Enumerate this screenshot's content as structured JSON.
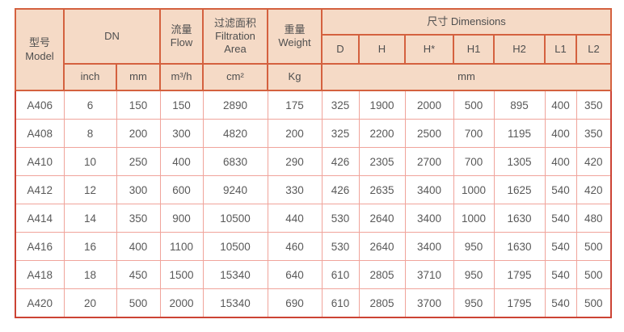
{
  "colors": {
    "header_bg": "#f5dac6",
    "outer_border": "#cc4334",
    "header_grid": "#d4613f",
    "data_grid": "#f0a49b",
    "text": "#595959"
  },
  "header": {
    "model": "型号\nModel",
    "dn": "DN",
    "flow": "流量\nFlow",
    "filtration_area": "过滤面积\nFiltration\nArea",
    "weight": "重量\nWeight",
    "dimensions": "尺寸 Dimensions",
    "dim_cols": [
      "D",
      "H",
      "H*",
      "H1",
      "H2",
      "L1",
      "L2"
    ],
    "units": {
      "inch": "inch",
      "mm": "mm",
      "flow": "m³/h",
      "area": "cm²",
      "weight": "Kg",
      "dims": "mm"
    }
  },
  "rows": [
    {
      "model": "A406",
      "inch": "6",
      "mm": "150",
      "flow": "150",
      "area": "2890",
      "weight": "175",
      "dims": [
        "325",
        "1900",
        "2000",
        "500",
        "895",
        "400",
        "350"
      ]
    },
    {
      "model": "A408",
      "inch": "8",
      "mm": "200",
      "flow": "300",
      "area": "4820",
      "weight": "200",
      "dims": [
        "325",
        "2200",
        "2500",
        "700",
        "1195",
        "400",
        "350"
      ]
    },
    {
      "model": "A410",
      "inch": "10",
      "mm": "250",
      "flow": "400",
      "area": "6830",
      "weight": "290",
      "dims": [
        "426",
        "2305",
        "2700",
        "700",
        "1305",
        "400",
        "420"
      ]
    },
    {
      "model": "A412",
      "inch": "12",
      "mm": "300",
      "flow": "600",
      "area": "9240",
      "weight": "330",
      "dims": [
        "426",
        "2635",
        "3400",
        "1000",
        "1625",
        "540",
        "420"
      ]
    },
    {
      "model": "A414",
      "inch": "14",
      "mm": "350",
      "flow": "900",
      "area": "10500",
      "weight": "440",
      "dims": [
        "530",
        "2640",
        "3400",
        "1000",
        "1630",
        "540",
        "480"
      ]
    },
    {
      "model": "A416",
      "inch": "16",
      "mm": "400",
      "flow": "1100",
      "area": "10500",
      "weight": "460",
      "dims": [
        "530",
        "2640",
        "3400",
        "950",
        "1630",
        "540",
        "500"
      ]
    },
    {
      "model": "A418",
      "inch": "18",
      "mm": "450",
      "flow": "1500",
      "area": "15340",
      "weight": "640",
      "dims": [
        "610",
        "2805",
        "3710",
        "950",
        "1795",
        "540",
        "500"
      ]
    },
    {
      "model": "A420",
      "inch": "20",
      "mm": "500",
      "flow": "2000",
      "area": "15340",
      "weight": "690",
      "dims": [
        "610",
        "2805",
        "3700",
        "950",
        "1795",
        "540",
        "500"
      ]
    }
  ]
}
